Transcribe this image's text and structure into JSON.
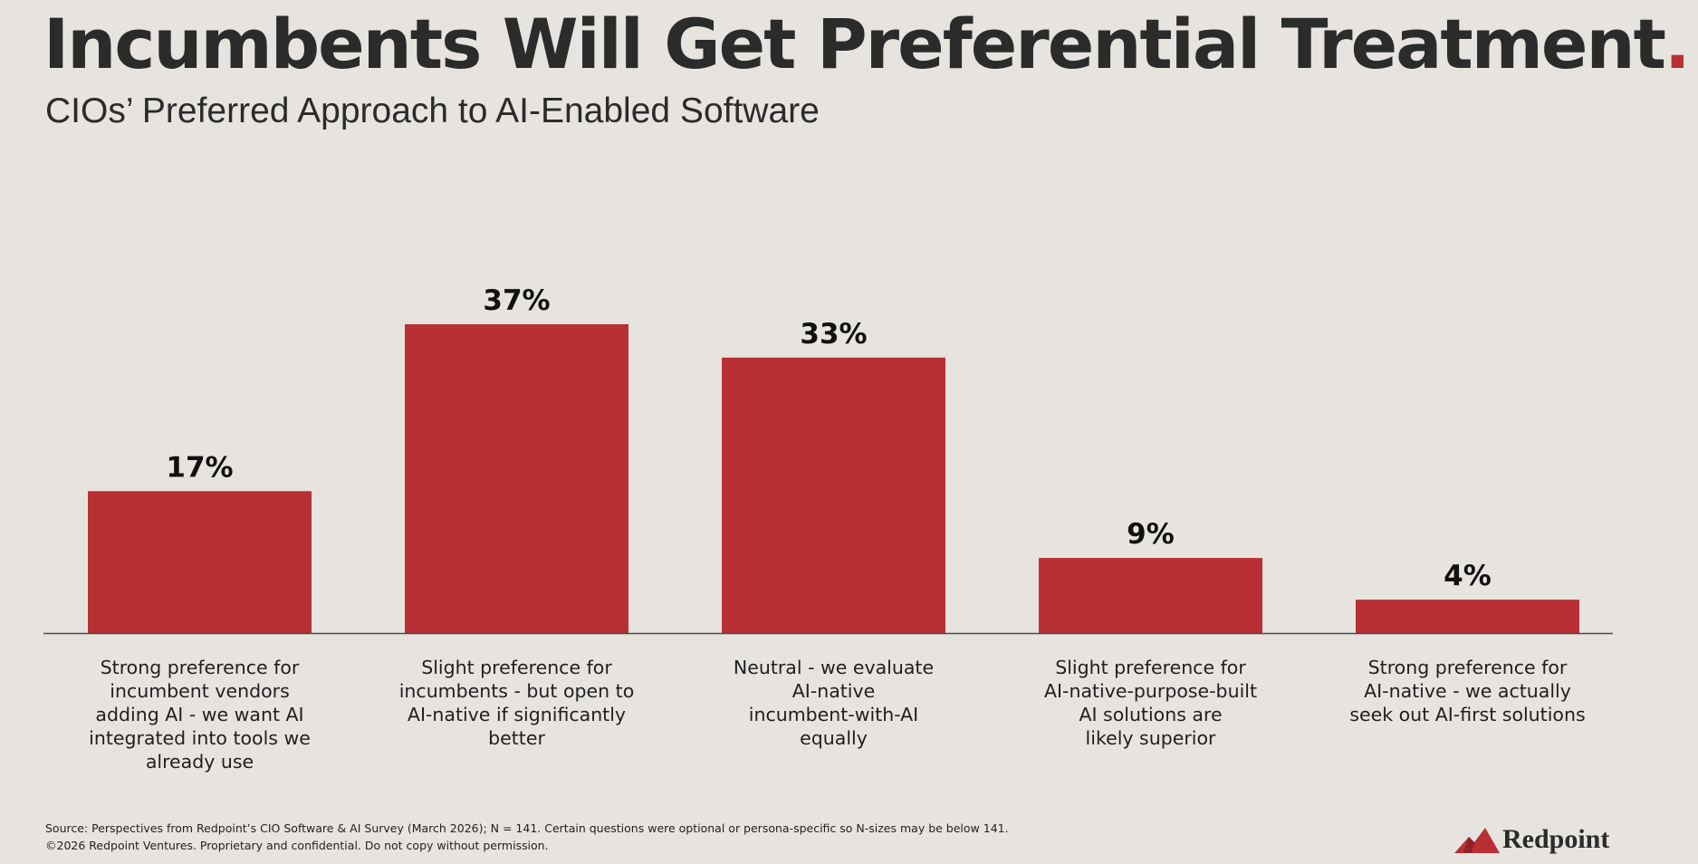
{
  "title": "Incumbents Will Get Preferential Treatment",
  "title_period": ".",
  "subtitle": "CIOs’ Preferred Approach to AI-Enabled Software",
  "chart_data": {
    "type": "bar",
    "title": "Incumbents Will Get Preferential Treatment.",
    "subtitle": "CIOs’ Preferred Approach to AI-Enabled Software",
    "categories": [
      "Strong preference for\nincumbent vendors\nadding AI - we want AI\nintegrated into tools we\nalready use",
      "Slight preference for\nincumbents - but open to\nAI-native if significantly\nbetter",
      "Neutral - we evaluate\nAI-native\nincumbent-with-AI\nequally",
      "Slight preference for\nAI-native-purpose-built\nAI solutions are\nlikely superior",
      "Strong preference for\nAI-native - we actually\nseek out AI-first solutions"
    ],
    "values": [
      17,
      37,
      33,
      9,
      4
    ],
    "value_labels": [
      "17%",
      "37%",
      "33%",
      "9%",
      "4%"
    ],
    "unit": "%",
    "xlabel": "",
    "ylabel": "",
    "ylim": [
      0,
      37
    ],
    "grid": false,
    "bar_color": "#b83034"
  },
  "footer": {
    "source": "Source: Perspectives from Redpoint’s CIO Software & AI Survey (March 2026); N = 141. Certain questions were optional or persona-specific so  N-sizes may be below 141.",
    "copyright": "©2026 Redpoint Ventures. Proprietary and confidential. Do not copy without permission."
  },
  "brand": {
    "name": "Redpoint",
    "logo_icon": "redpoint-mountain-icon",
    "accent_color": "#b83034"
  }
}
